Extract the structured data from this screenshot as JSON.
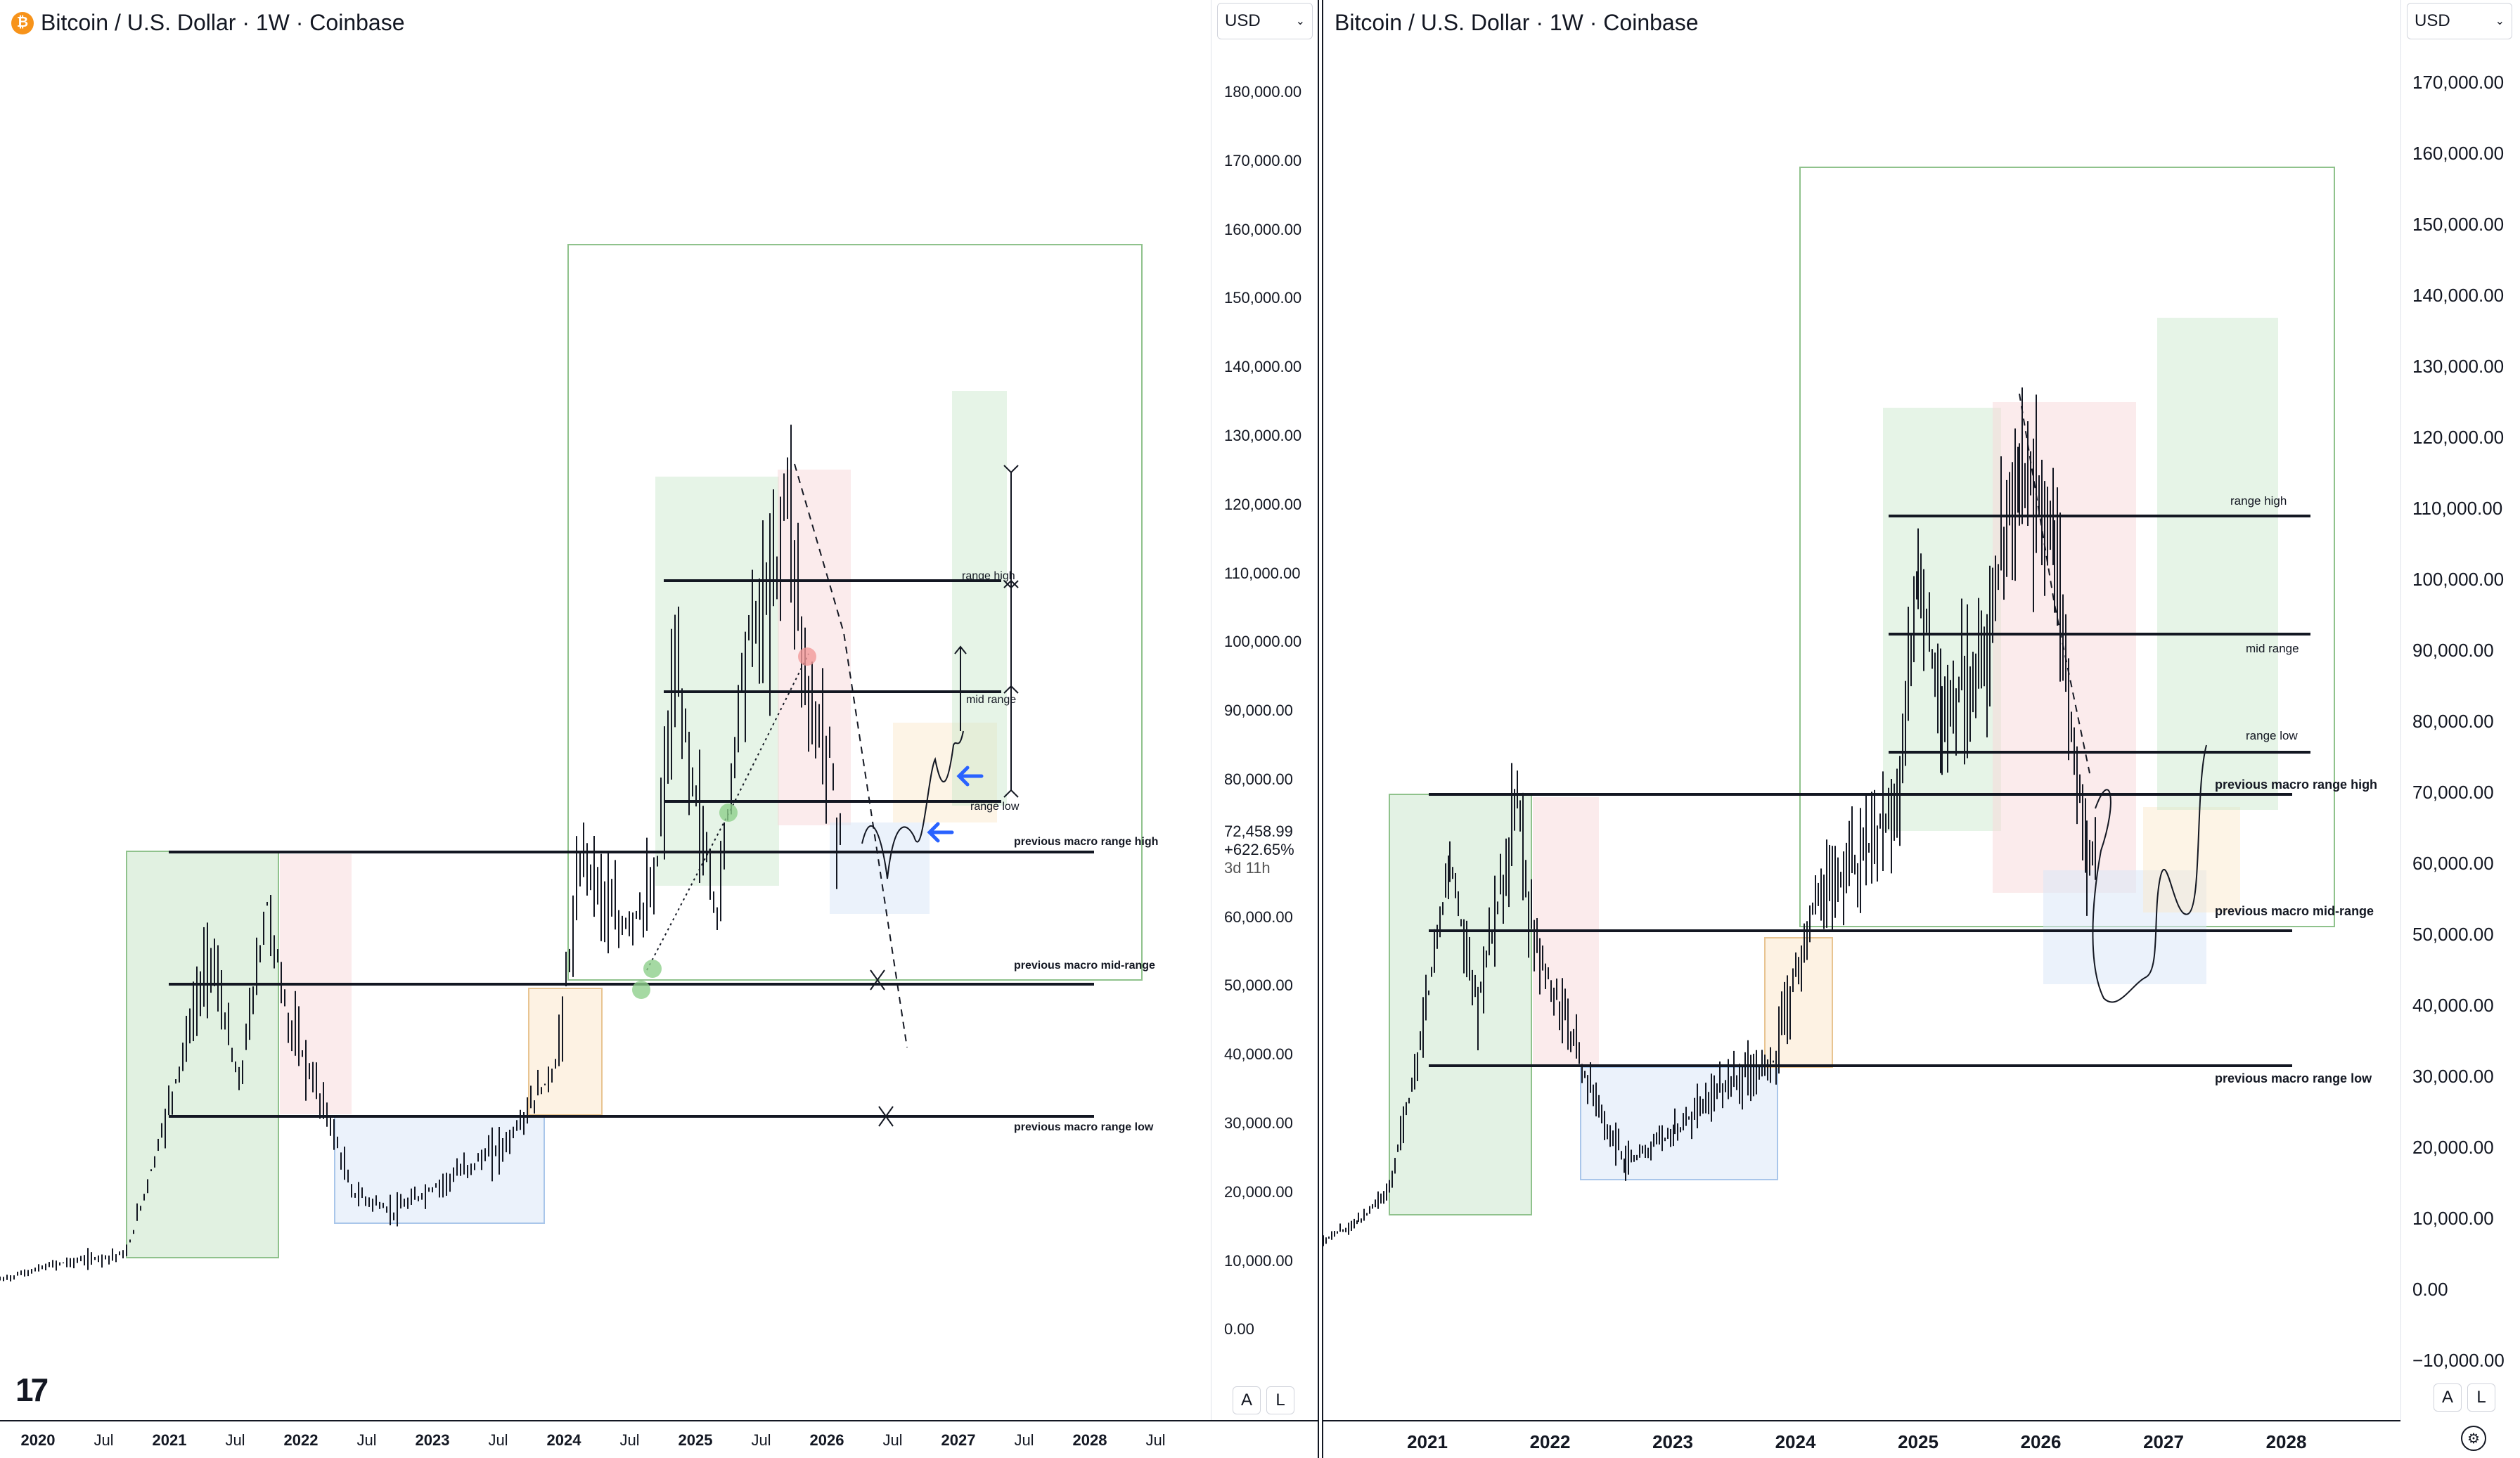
{
  "left_chart": {
    "title": "Bitcoin / U.S. Dollar · 1W · Coinbase",
    "symbol_badge": "₿",
    "currency": "USD",
    "price_ticks": [
      "180,000.00",
      "170,000.00",
      "160,000.00",
      "150,000.00",
      "140,000.00",
      "130,000.00",
      "120,000.00",
      "110,000.00",
      "100,000.00",
      "90,000.00",
      "80,000.00",
      "60,000.00",
      "50,000.00",
      "40,000.00",
      "30,000.00",
      "20,000.00",
      "10,000.00",
      "0.00"
    ],
    "last_price": "72,458.99",
    "change_pct": "+622.65%",
    "countdown": "3d 11h",
    "time_ticks": [
      "2020",
      "Jul",
      "2021",
      "Jul",
      "2022",
      "Jul",
      "2023",
      "Jul",
      "2024",
      "Jul",
      "2025",
      "Jul",
      "2026",
      "Jul",
      "2027",
      "Jul",
      "2028",
      "Jul"
    ],
    "annotations": {
      "range_high": "range high",
      "mid_range": "mid range",
      "range_low": "range low",
      "prev_macro_high": "previous macro range high",
      "prev_macro_mid": "previous macro mid-range",
      "prev_macro_low": "previous macro range low"
    },
    "buttons": {
      "auto": "A",
      "log": "L"
    },
    "logo": "17"
  },
  "right_chart": {
    "title": "Bitcoin / U.S. Dollar · 1W · Coinbase",
    "currency": "USD",
    "price_ticks": [
      "170,000.00",
      "160,000.00",
      "150,000.00",
      "140,000.00",
      "130,000.00",
      "120,000.00",
      "110,000.00",
      "100,000.00",
      "90,000.00",
      "80,000.00",
      "70,000.00",
      "60,000.00",
      "50,000.00",
      "40,000.00",
      "30,000.00",
      "20,000.00",
      "10,000.00",
      "0.00",
      "−10,000.00"
    ],
    "time_ticks": [
      "2021",
      "2022",
      "2023",
      "2024",
      "2025",
      "2026",
      "2027",
      "2028"
    ],
    "annotations": {
      "range_high": "range high",
      "mid_range": "mid range",
      "range_low": "range low",
      "prev_macro_high": "previous macro range high",
      "prev_macro_mid": "previous macro mid-range",
      "prev_macro_low": "previous macro range low"
    },
    "buttons": {
      "auto": "A",
      "log": "L"
    },
    "settings_icon": "gear-icon"
  },
  "colors": {
    "candle": "#131722",
    "zone_green": "#c8e6c9",
    "zone_red": "#f8d7da",
    "zone_blue": "#dbe8f8",
    "zone_orange": "#fbe6c8",
    "frame_green": "#8fc28c",
    "arrow_blue": "#2962ff"
  }
}
